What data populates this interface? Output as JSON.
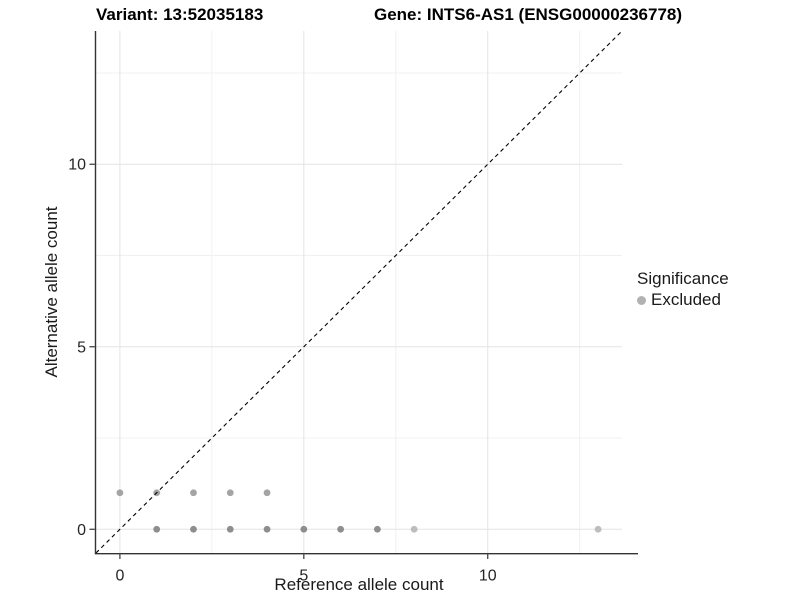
{
  "chart_data": {
    "type": "scatter",
    "title_left": "Variant: 13:52035183",
    "title_right": "Gene: INTS6-AS1 (ENSG00000236778)",
    "xlabel": "Reference allele count",
    "ylabel": "Alternative allele count",
    "xlim": [
      -0.65,
      13.65
    ],
    "ylim": [
      -0.65,
      13.65
    ],
    "x_ticks": [
      0,
      5,
      10
    ],
    "y_ticks": [
      0,
      5,
      10
    ],
    "x_minor_ticks": [
      2.5,
      7.5,
      12.5
    ],
    "y_minor_ticks": [
      2.5,
      7.5,
      12.5
    ],
    "grid": "major+minor",
    "legend_position": "right",
    "legend_title": "Significance",
    "legend_dot_color": "#b2b2b2",
    "reference_line": {
      "type": "identity y=x",
      "style": "dashed",
      "color": "#000000"
    },
    "point_colors": {
      "dark": "#8e8e8e",
      "mid": "#a4a4a4",
      "light": "#bdbdbd"
    },
    "series": [
      {
        "name": "Excluded",
        "points": [
          {
            "x": 0,
            "y": 1,
            "shade": "mid"
          },
          {
            "x": 1,
            "y": 1,
            "shade": "mid"
          },
          {
            "x": 2,
            "y": 1,
            "shade": "mid"
          },
          {
            "x": 3,
            "y": 1,
            "shade": "mid"
          },
          {
            "x": 4,
            "y": 1,
            "shade": "mid"
          },
          {
            "x": 1,
            "y": 0,
            "shade": "dark"
          },
          {
            "x": 2,
            "y": 0,
            "shade": "dark"
          },
          {
            "x": 3,
            "y": 0,
            "shade": "dark"
          },
          {
            "x": 4,
            "y": 0,
            "shade": "dark"
          },
          {
            "x": 5,
            "y": 0,
            "shade": "dark"
          },
          {
            "x": 6,
            "y": 0,
            "shade": "dark"
          },
          {
            "x": 7,
            "y": 0,
            "shade": "dark"
          },
          {
            "x": 8,
            "y": 0,
            "shade": "light"
          },
          {
            "x": 13,
            "y": 0,
            "shade": "light"
          }
        ]
      }
    ],
    "style_colors": {
      "grid_major": "#e3e3e3",
      "grid_minor": "#f0f0f0",
      "axis_line": "#333333",
      "tick_label": "#262626"
    }
  }
}
